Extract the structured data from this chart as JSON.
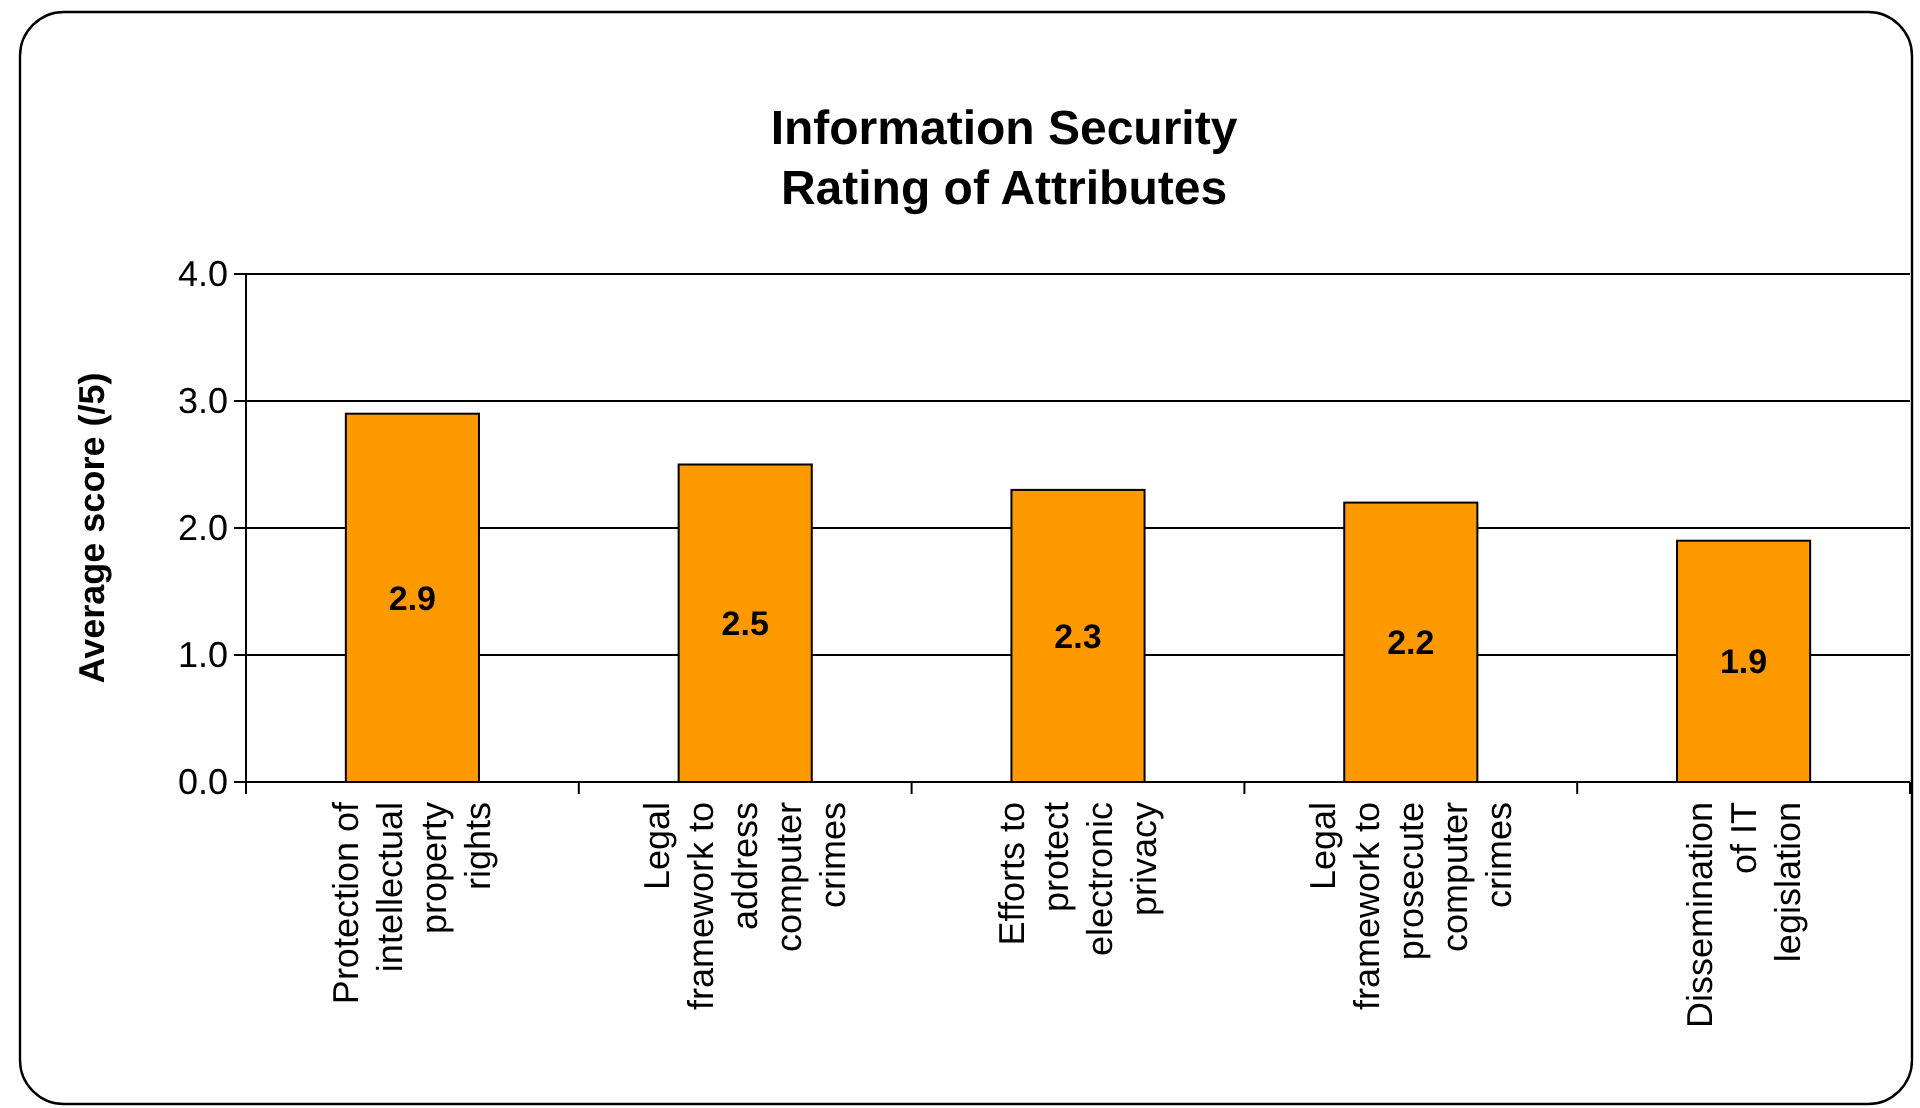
{
  "chart_data": {
    "type": "bar",
    "title": "Information Security\nRating of Attributes",
    "ylabel": "Average score (/5)",
    "categories": [
      "Protection of intellectual property rights",
      "Legal framework to address computer crimes",
      "Efforts to protect electronic privacy",
      "Legal framework to prosecute computer crimes",
      "Dissemination of IT legislation"
    ],
    "values": [
      2.9,
      2.5,
      2.3,
      2.2,
      1.9
    ],
    "color": "#ff9900",
    "ylim": [
      0,
      4
    ],
    "yticks": [
      {
        "value": 0,
        "label": "0.0"
      },
      {
        "value": 1,
        "label": "1.0"
      },
      {
        "value": 2,
        "label": "2.0"
      },
      {
        "value": 3,
        "label": "3.0"
      },
      {
        "value": 4,
        "label": "4.0"
      }
    ],
    "grid": "y",
    "data_labels": true
  }
}
